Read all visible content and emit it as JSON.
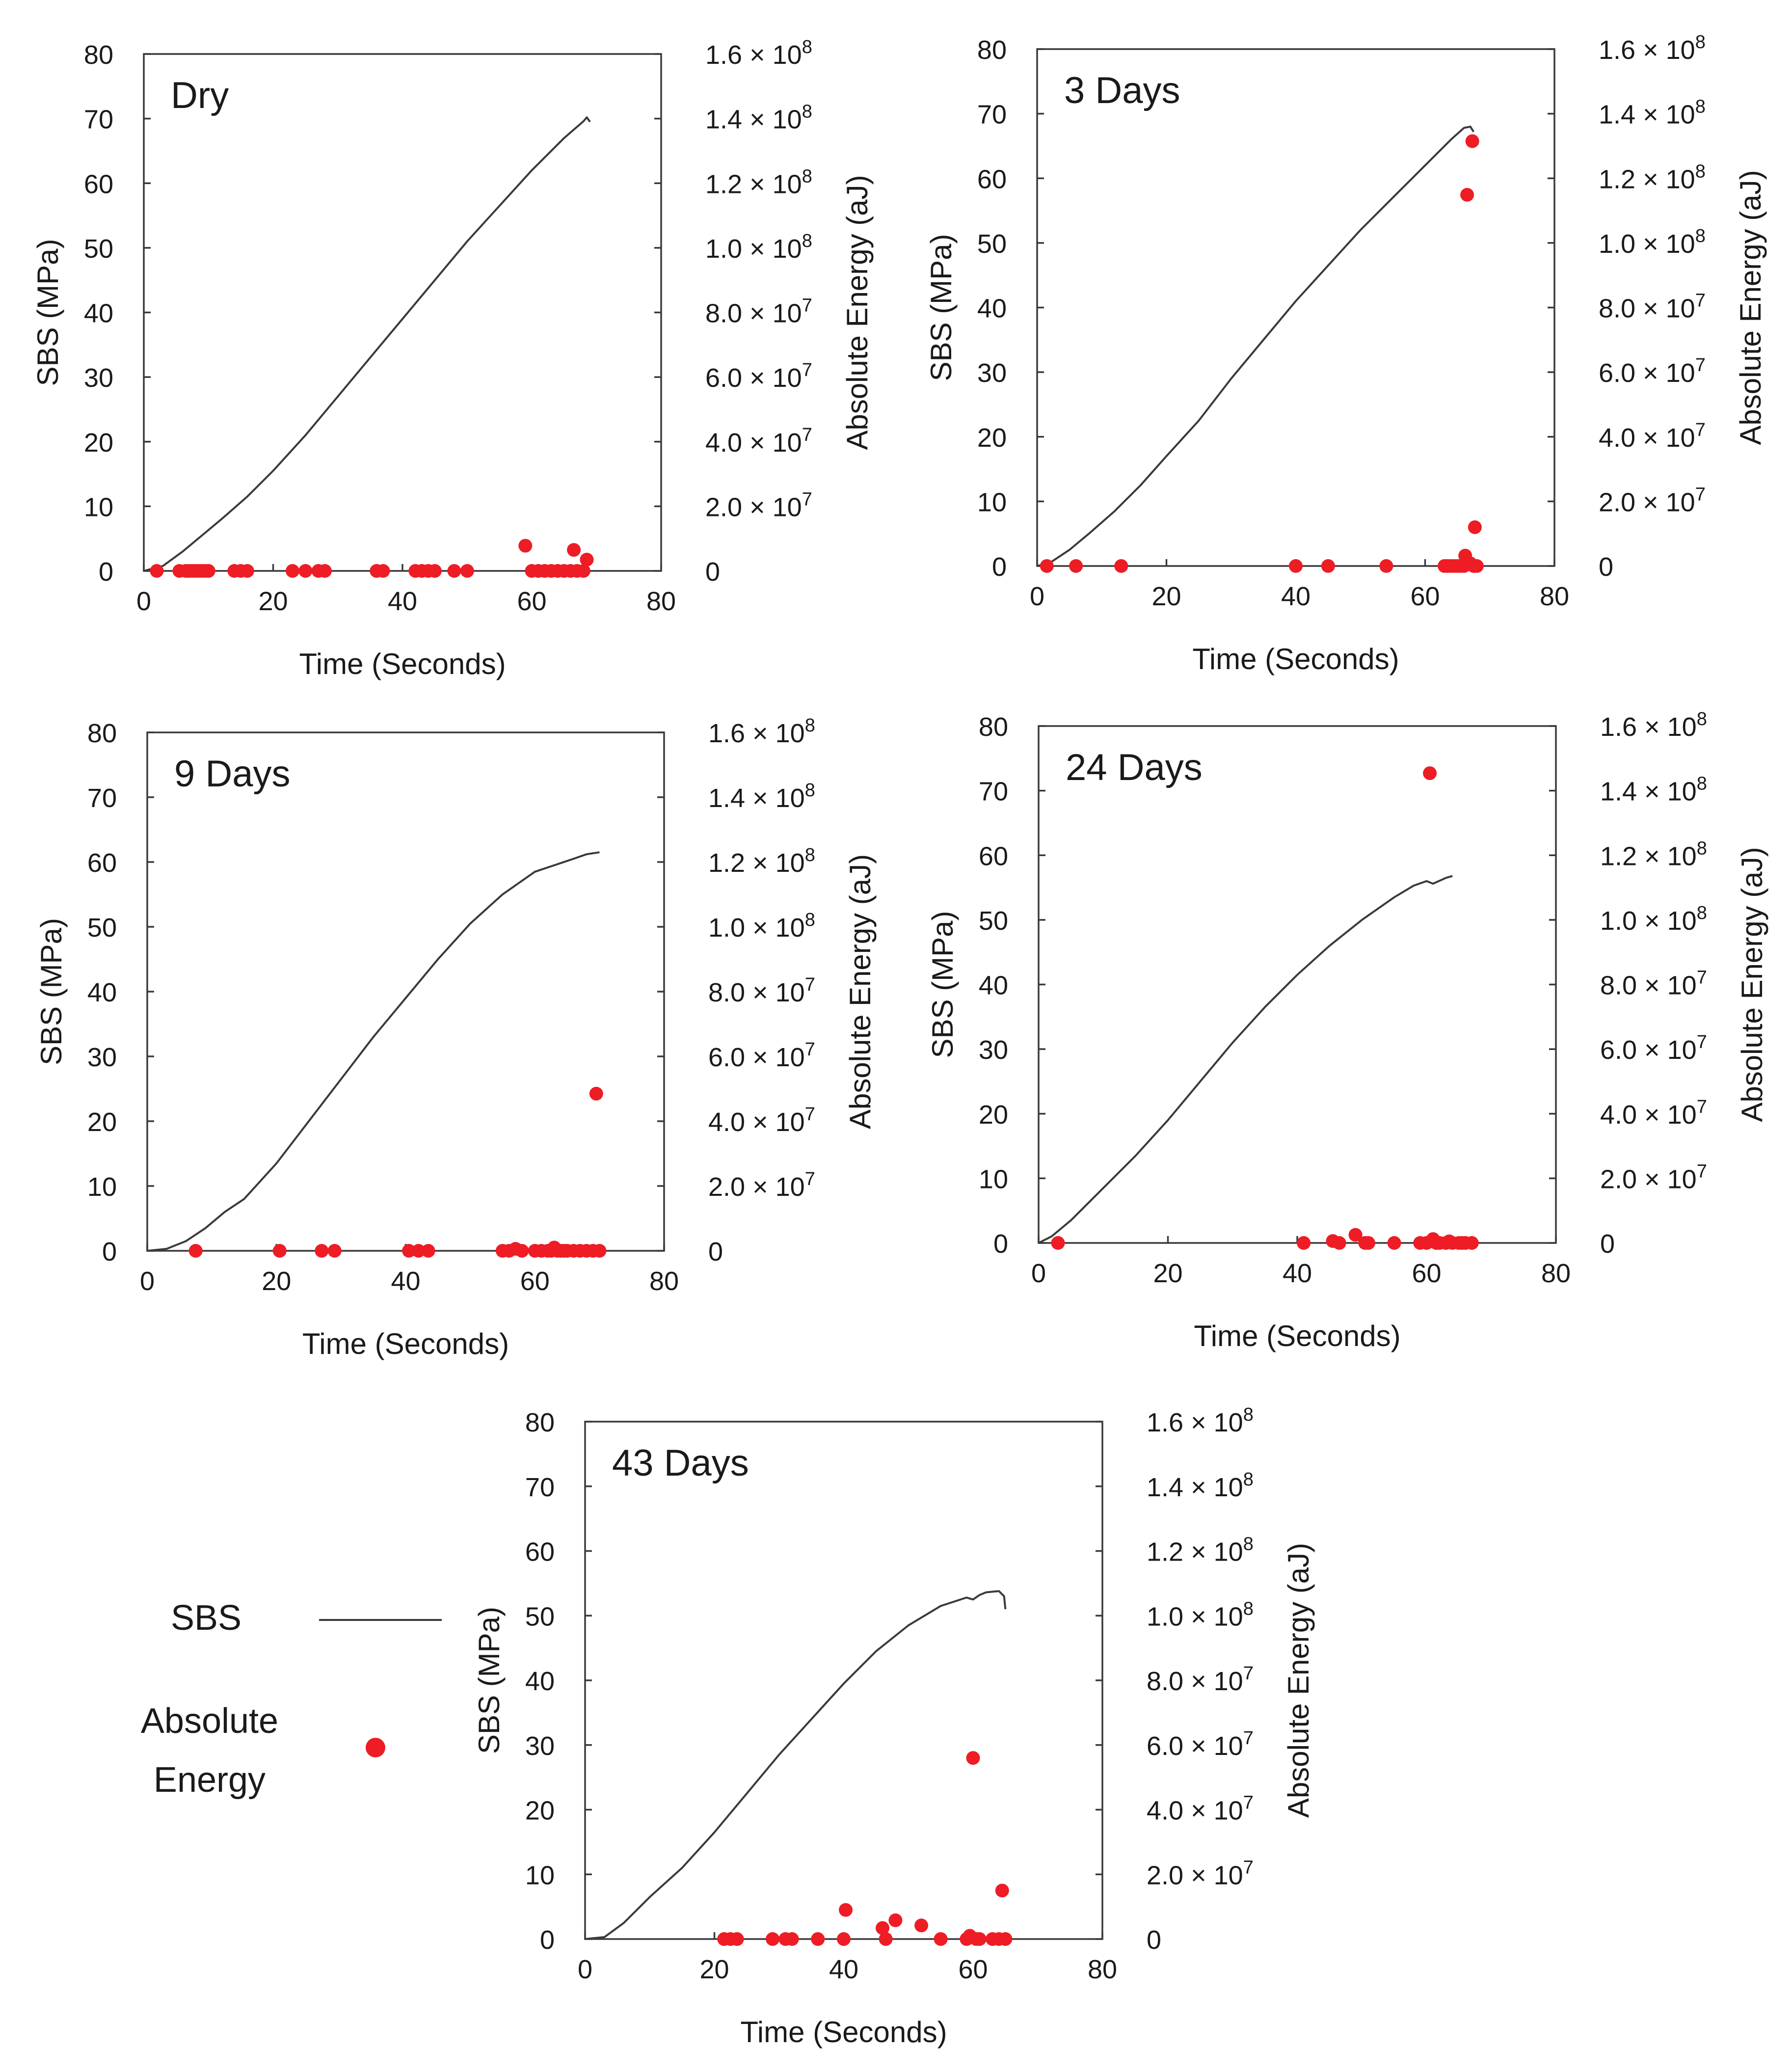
{
  "chart_data": [
    {
      "type": "line+scatter",
      "title": "Dry",
      "xlabel": "Time (Seconds)",
      "ylabel": "SBS (MPa)",
      "y2label": "Absolute Energy (aJ)",
      "xlim": [
        0,
        80
      ],
      "ylim": [
        0,
        80
      ],
      "y2lim": [
        0,
        160000000
      ],
      "xticks": [
        "0",
        "20",
        "40",
        "60",
        "80"
      ],
      "yticks": [
        "0",
        "10",
        "20",
        "30",
        "40",
        "50",
        "60",
        "70",
        "80"
      ],
      "y2ticks": [
        "0",
        "2.0 × 10^7",
        "4.0 × 10^7",
        "6.0 × 10^7",
        "8.0 × 10^7",
        "1.0 × 10^8",
        "1.2 × 10^8",
        "1.4 × 10^8",
        "1.6 × 10^8"
      ],
      "sbs": {
        "name": "SBS",
        "x": [
          0,
          3,
          6,
          9,
          12,
          16,
          20,
          25,
          30,
          35,
          40,
          45,
          50,
          55,
          60,
          65,
          68,
          68.5,
          69
        ],
        "y": [
          0,
          0.8,
          3,
          5.5,
          8,
          11.5,
          15.5,
          21,
          27,
          33,
          39,
          45,
          51,
          56.5,
          62,
          67,
          69.6,
          70.2,
          69.5
        ]
      },
      "energy": {
        "name": "Absolute Energy",
        "x": [
          2,
          5.5,
          6.5,
          7,
          7.5,
          8,
          8.5,
          9,
          9.5,
          10,
          14,
          15,
          16,
          23,
          25,
          27,
          28,
          36,
          37,
          42,
          43,
          44,
          45,
          48,
          50,
          59,
          60,
          61,
          62,
          63,
          64,
          65,
          66,
          66.5,
          67,
          68,
          68.5
        ],
        "y": [
          0,
          0,
          0,
          0,
          0,
          0,
          0,
          0,
          0,
          0,
          0,
          0,
          0,
          0,
          0,
          0,
          0,
          0,
          0,
          0,
          0,
          0,
          0,
          0,
          0,
          7800000,
          0,
          0,
          0,
          0,
          0,
          0,
          0,
          6500000,
          0,
          0,
          3500000
        ]
      }
    },
    {
      "type": "line+scatter",
      "title": "3 Days",
      "xlabel": "Time (Seconds)",
      "ylabel": "SBS (MPa)",
      "y2label": "Absolute Energy (aJ)",
      "xlim": [
        0,
        80
      ],
      "ylim": [
        0,
        80
      ],
      "y2lim": [
        0,
        160000000
      ],
      "xticks": [
        "0",
        "20",
        "40",
        "60",
        "80"
      ],
      "yticks": [
        "0",
        "10",
        "20",
        "30",
        "40",
        "50",
        "60",
        "70",
        "80"
      ],
      "y2ticks": [
        "0",
        "2.0 × 10^7",
        "4.0 × 10^7",
        "6.0 × 10^7",
        "8.0 × 10^7",
        "1.0 × 10^8",
        "1.2 × 10^8",
        "1.4 × 10^8",
        "1.6 × 10^8"
      ],
      "sbs": {
        "name": "SBS",
        "x": [
          0,
          2,
          5,
          8,
          12,
          16,
          20,
          25,
          30,
          35,
          40,
          45,
          50,
          55,
          60,
          64,
          66,
          67,
          67.5
        ],
        "y": [
          0,
          0.5,
          2.5,
          5,
          8.5,
          12.5,
          17,
          22.5,
          29,
          35,
          41,
          46.5,
          52,
          57,
          62,
          66,
          67.8,
          68,
          67.2
        ]
      },
      "energy": {
        "name": "Absolute Energy",
        "x": [
          1.5,
          6,
          13,
          40,
          45,
          54,
          63,
          63.5,
          64,
          64.5,
          65,
          65.5,
          66,
          66.2,
          66.5,
          67,
          67.3,
          67.5,
          67.7,
          68
        ],
        "y": [
          0,
          0,
          0,
          0,
          0,
          0,
          0,
          0,
          0,
          0,
          0,
          0,
          0,
          3200000,
          114900000,
          800000,
          131500000,
          0,
          12000000,
          0
        ]
      }
    },
    {
      "type": "line+scatter",
      "title": "9 Days",
      "xlabel": "Time (Seconds)",
      "ylabel": "SBS (MPa)",
      "y2label": "Absolute Energy (aJ)",
      "xlim": [
        0,
        80
      ],
      "ylim": [
        0,
        80
      ],
      "y2lim": [
        0,
        160000000
      ],
      "xticks": [
        "0",
        "20",
        "40",
        "60",
        "80"
      ],
      "yticks": [
        "0",
        "10",
        "20",
        "30",
        "40",
        "50",
        "60",
        "70",
        "80"
      ],
      "y2ticks": [
        "0",
        "2.0 × 10^7",
        "4.0 × 10^7",
        "6.0 × 10^7",
        "8.0 × 10^7",
        "1.0 × 10^8",
        "1.2 × 10^8",
        "1.4 × 10^8",
        "1.6 × 10^8"
      ],
      "sbs": {
        "name": "SBS",
        "x": [
          0,
          3,
          6,
          9,
          12,
          15,
          20,
          25,
          30,
          35,
          40,
          45,
          50,
          55,
          60,
          63,
          66,
          68,
          70
        ],
        "y": [
          0,
          0.3,
          1.5,
          3.5,
          6,
          8,
          13.5,
          20,
          26.5,
          33,
          39,
          45,
          50.5,
          55,
          58.5,
          59.5,
          60.5,
          61.2,
          61.5
        ]
      },
      "energy": {
        "name": "Absolute Energy",
        "x": [
          7.5,
          20.5,
          27,
          29,
          40.5,
          42,
          43.5,
          55,
          56,
          57,
          58,
          60,
          61,
          62,
          62.5,
          63,
          63.5,
          64,
          64.5,
          65,
          66,
          67,
          68,
          69,
          69.5,
          70
        ],
        "y": [
          0,
          0,
          0,
          0,
          0,
          0,
          0,
          0,
          0,
          600000,
          0,
          0,
          0,
          0,
          0,
          1000000,
          0,
          0,
          0,
          0,
          0,
          0,
          0,
          0,
          48500000,
          0
        ]
      }
    },
    {
      "type": "line+scatter",
      "title": "24 Days",
      "xlabel": "Time (Seconds)",
      "ylabel": "SBS (MPa)",
      "y2label": "Absolute Energy (aJ)",
      "xlim": [
        0,
        80
      ],
      "ylim": [
        0,
        80
      ],
      "y2lim": [
        0,
        160000000
      ],
      "xticks": [
        "0",
        "20",
        "40",
        "60",
        "80"
      ],
      "yticks": [
        "0",
        "10",
        "20",
        "30",
        "40",
        "50",
        "60",
        "70",
        "80"
      ],
      "y2ticks": [
        "0",
        "2.0 × 10^7",
        "4.0 × 10^7",
        "6.0 × 10^7",
        "8.0 × 10^7",
        "1.0 × 10^8",
        "1.2 × 10^8",
        "1.4 × 10^8",
        "1.6 × 10^8"
      ],
      "sbs": {
        "name": "SBS",
        "x": [
          0,
          2,
          5,
          10,
          15,
          20,
          25,
          30,
          35,
          40,
          45,
          50,
          55,
          58,
          60,
          61,
          63,
          64
        ],
        "y": [
          0,
          1,
          3.5,
          8.5,
          13.5,
          19,
          25,
          31,
          36.5,
          41.5,
          46,
          50,
          53.5,
          55.3,
          56,
          55.6,
          56.5,
          56.8
        ]
      },
      "energy": {
        "name": "Absolute Energy",
        "x": [
          3,
          41,
          45.5,
          46.5,
          49,
          50.5,
          51,
          55,
          59,
          60,
          60.5,
          61,
          61.5,
          62,
          63,
          63.5,
          64,
          65,
          65.5,
          66,
          67
        ],
        "y": [
          0,
          0,
          600000,
          0,
          2500000,
          0,
          0,
          0,
          0,
          0,
          145400000,
          1200000,
          0,
          0,
          0,
          500000,
          0,
          0,
          0,
          0,
          0
        ]
      }
    },
    {
      "type": "line+scatter",
      "title": "43 Days",
      "xlabel": "Time (Seconds)",
      "ylabel": "SBS (MPa)",
      "y2label": "Absolute Energy (aJ)",
      "xlim": [
        0,
        80
      ],
      "ylim": [
        0,
        80
      ],
      "y2lim": [
        0,
        160000000
      ],
      "xticks": [
        "0",
        "20",
        "40",
        "60",
        "80"
      ],
      "yticks": [
        "0",
        "10",
        "20",
        "30",
        "40",
        "50",
        "60",
        "70",
        "80"
      ],
      "y2ticks": [
        "0",
        "2.0 × 10^7",
        "4.0 × 10^7",
        "6.0 × 10^7",
        "8.0 × 10^7",
        "1.0 × 10^8",
        "1.2 × 10^8",
        "1.4 × 10^8",
        "1.6 × 10^8"
      ],
      "sbs": {
        "name": "SBS",
        "x": [
          0,
          3,
          6,
          10,
          15,
          20,
          25,
          30,
          35,
          40,
          45,
          50,
          55,
          59,
          60,
          61,
          62,
          64,
          64.8,
          65
        ],
        "y": [
          0,
          0.3,
          2.5,
          6.5,
          11,
          16.5,
          22.5,
          28.5,
          34,
          39.5,
          44.5,
          48.5,
          51.5,
          52.8,
          52.5,
          53.2,
          53.6,
          53.8,
          53,
          51
        ]
      },
      "energy": {
        "name": "Absolute Energy",
        "x": [
          21.5,
          22.5,
          23.5,
          29,
          31,
          32,
          36,
          40,
          40.3,
          46,
          46.5,
          48,
          52,
          55,
          59,
          59.5,
          60,
          60.5,
          61,
          63,
          64,
          64.5,
          65
        ],
        "y": [
          0,
          0,
          0,
          0,
          0,
          0,
          0,
          0,
          9000000,
          3400000,
          0,
          5800000,
          4200000,
          0,
          0,
          1000000,
          56000000,
          0,
          0,
          0,
          0,
          15000000,
          0
        ]
      }
    }
  ],
  "legend": {
    "sbs_label": "SBS",
    "energy_label_line1": "Absolute",
    "energy_label_line2": "Energy"
  },
  "colors": {
    "sbs_line": "#3a3a3a",
    "energy_marker": "#ee1c24"
  }
}
